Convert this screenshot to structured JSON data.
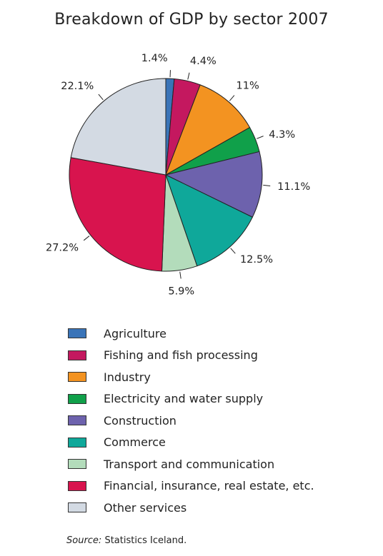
{
  "chart_data": {
    "type": "pie",
    "title": "Breakdown of GDP by sector 2007",
    "slices": [
      {
        "name": "Agriculture",
        "value": 1.4,
        "label": "1.4%",
        "color": "#3a74b8"
      },
      {
        "name": "Fishing and fish processing",
        "value": 4.4,
        "label": "4.4%",
        "color": "#c4185f"
      },
      {
        "name": "Industry",
        "value": 11.0,
        "label": "11%",
        "color": "#f39321"
      },
      {
        "name": "Electricity and water supply",
        "value": 4.3,
        "label": "4.3%",
        "color": "#10a04a"
      },
      {
        "name": "Construction",
        "value": 11.1,
        "label": "11.1%",
        "color": "#6d62ad"
      },
      {
        "name": "Commerce",
        "value": 12.5,
        "label": "12.5%",
        "color": "#0fa89a"
      },
      {
        "name": "Transport and communication",
        "value": 5.9,
        "label": "5.9%",
        "color": "#b3dcbb"
      },
      {
        "name": "Financial, insurance, real estate, etc.",
        "value": 27.2,
        "label": "27.2%",
        "color": "#d8144e"
      },
      {
        "name": "Other services",
        "value": 22.1,
        "label": "22.1%",
        "color": "#d3dae3"
      }
    ],
    "legend_placement": "bottom"
  },
  "source": {
    "prefix": "Source:",
    "text": " Statistics Iceland."
  }
}
